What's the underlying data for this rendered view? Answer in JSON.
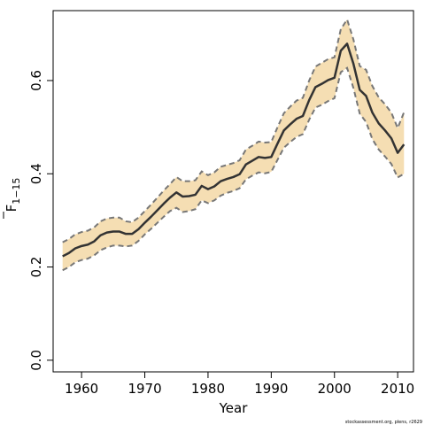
{
  "chart_data": {
    "type": "area",
    "title": "",
    "xlabel": "Year",
    "ylabel": "F",
    "ylabel_subscript": "1−15",
    "xlim": [
      1955.5,
      2012.5
    ],
    "ylim": [
      -0.025,
      0.75
    ],
    "x_ticks": [
      1960,
      1970,
      1980,
      1990,
      2000,
      2010
    ],
    "y_ticks": [
      0.0,
      0.2,
      0.4,
      0.6
    ],
    "y_tick_labels": [
      "0.0",
      "0.2",
      "0.4",
      "0.6"
    ],
    "grid": false,
    "colors": {
      "band": "#f5deb3",
      "line": "#333333",
      "bounds": "#777777"
    },
    "x": [
      1957,
      1958,
      1959,
      1960,
      1961,
      1962,
      1963,
      1964,
      1965,
      1966,
      1967,
      1968,
      1969,
      1970,
      1971,
      1972,
      1973,
      1974,
      1975,
      1976,
      1977,
      1978,
      1979,
      1980,
      1981,
      1982,
      1983,
      1984,
      1985,
      1986,
      1987,
      1988,
      1989,
      1990,
      1991,
      1992,
      1993,
      1994,
      1995,
      1996,
      1997,
      1998,
      1999,
      2000,
      2001,
      2002,
      2003,
      2004,
      2005,
      2006,
      2007,
      2008,
      2009,
      2010,
      2011
    ],
    "series": [
      {
        "role": "estimate",
        "values": [
          0.223,
          0.23,
          0.24,
          0.245,
          0.248,
          0.255,
          0.268,
          0.274,
          0.276,
          0.276,
          0.271,
          0.271,
          0.281,
          0.295,
          0.308,
          0.322,
          0.336,
          0.349,
          0.36,
          0.351,
          0.352,
          0.355,
          0.374,
          0.367,
          0.373,
          0.384,
          0.389,
          0.393,
          0.399,
          0.42,
          0.428,
          0.436,
          0.434,
          0.436,
          0.465,
          0.493,
          0.506,
          0.518,
          0.524,
          0.558,
          0.586,
          0.593,
          0.601,
          0.606,
          0.664,
          0.679,
          0.636,
          0.58,
          0.567,
          0.531,
          0.508,
          0.493,
          0.476,
          0.445,
          0.463
        ]
      },
      {
        "role": "lower",
        "values": [
          0.193,
          0.2,
          0.21,
          0.215,
          0.218,
          0.225,
          0.236,
          0.242,
          0.246,
          0.246,
          0.244,
          0.246,
          0.256,
          0.27,
          0.282,
          0.295,
          0.308,
          0.32,
          0.327,
          0.318,
          0.32,
          0.324,
          0.343,
          0.337,
          0.343,
          0.353,
          0.359,
          0.363,
          0.369,
          0.388,
          0.396,
          0.403,
          0.401,
          0.404,
          0.43,
          0.456,
          0.468,
          0.479,
          0.485,
          0.516,
          0.542,
          0.548,
          0.556,
          0.562,
          0.618,
          0.627,
          0.584,
          0.529,
          0.511,
          0.474,
          0.452,
          0.437,
          0.421,
          0.392,
          0.4
        ]
      },
      {
        "role": "upper",
        "values": [
          0.253,
          0.26,
          0.27,
          0.275,
          0.278,
          0.285,
          0.298,
          0.304,
          0.306,
          0.306,
          0.298,
          0.296,
          0.306,
          0.32,
          0.334,
          0.349,
          0.364,
          0.378,
          0.393,
          0.384,
          0.384,
          0.386,
          0.405,
          0.397,
          0.403,
          0.415,
          0.419,
          0.423,
          0.429,
          0.452,
          0.46,
          0.469,
          0.467,
          0.468,
          0.5,
          0.53,
          0.544,
          0.557,
          0.563,
          0.6,
          0.63,
          0.638,
          0.646,
          0.65,
          0.71,
          0.731,
          0.688,
          0.631,
          0.623,
          0.588,
          0.564,
          0.549,
          0.531,
          0.498,
          0.532
        ]
      }
    ]
  },
  "footer": {
    "credit": "stockassessment.org, plens, r2629"
  }
}
